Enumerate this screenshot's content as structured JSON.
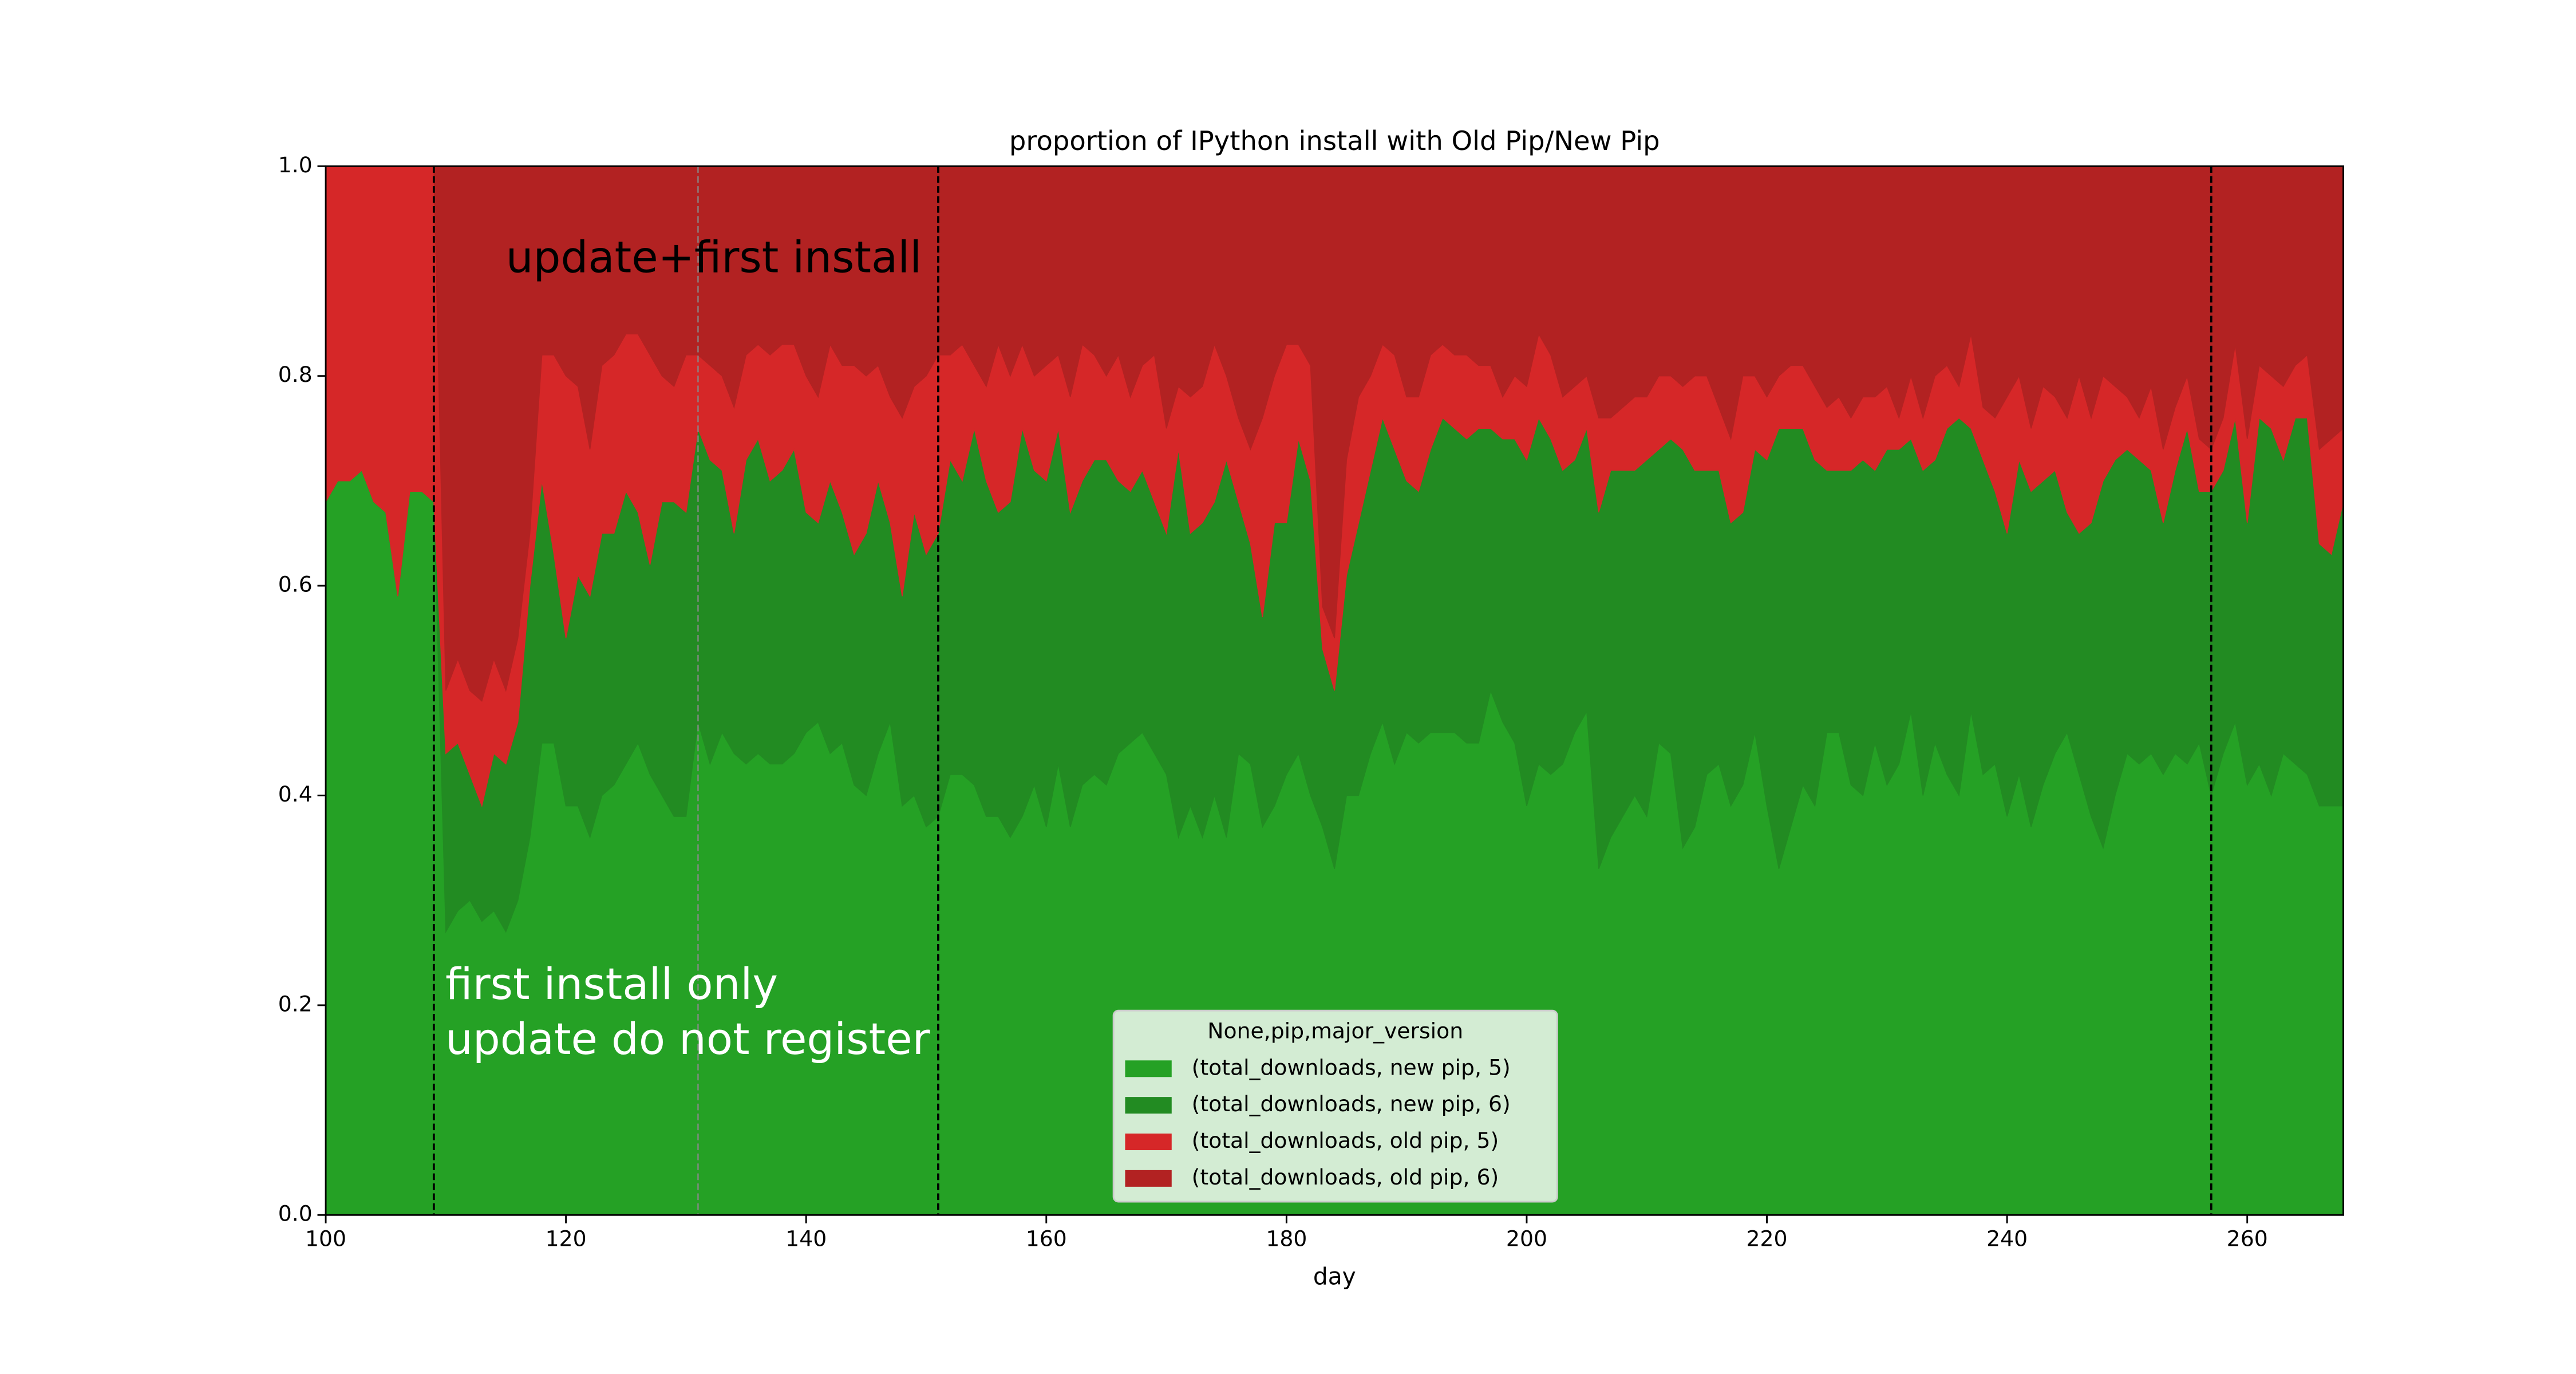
{
  "chart_data": {
    "type": "stacked_area",
    "title": "proportion of IPython install with Old Pip/New Pip",
    "x_label": "day",
    "xlim": [
      100,
      268
    ],
    "xticks": [
      100,
      120,
      140,
      160,
      180,
      200,
      220,
      240,
      260
    ],
    "ylim": [
      0,
      1
    ],
    "yticks": [
      {
        "value": 0,
        "label": "0.0"
      },
      {
        "value": 0.2,
        "label": "0.2"
      },
      {
        "value": 0.4,
        "label": "0.4"
      },
      {
        "value": 0.6,
        "label": "0.6"
      },
      {
        "value": 0.8,
        "label": "0.8"
      },
      {
        "value": 1,
        "label": "1.0"
      }
    ],
    "legend": {
      "title": "None,pip,major_version",
      "loc": "lower center"
    },
    "annotations": [
      "update+first install",
      "first install only",
      "update do not register"
    ],
    "vlines": [
      {
        "x": 109,
        "color": "#000000"
      },
      {
        "x": 131,
        "color": "#888888"
      },
      {
        "x": 151,
        "color": "#000000"
      },
      {
        "x": 257,
        "color": "#000000"
      }
    ],
    "x": [
      100,
      101,
      102,
      103,
      104,
      105,
      106,
      107,
      108,
      109,
      110,
      111,
      112,
      113,
      114,
      115,
      116,
      117,
      118,
      119,
      120,
      121,
      122,
      123,
      124,
      125,
      126,
      127,
      128,
      129,
      130,
      131,
      132,
      133,
      134,
      135,
      136,
      137,
      138,
      139,
      140,
      141,
      142,
      143,
      144,
      145,
      146,
      147,
      148,
      149,
      150,
      151,
      152,
      153,
      154,
      155,
      156,
      157,
      158,
      159,
      160,
      161,
      162,
      163,
      164,
      165,
      166,
      167,
      168,
      169,
      170,
      171,
      172,
      173,
      174,
      175,
      176,
      177,
      178,
      179,
      180,
      181,
      182,
      183,
      184,
      185,
      186,
      187,
      188,
      189,
      190,
      191,
      192,
      193,
      194,
      195,
      196,
      197,
      198,
      199,
      200,
      201,
      202,
      203,
      204,
      205,
      206,
      207,
      208,
      209,
      210,
      211,
      212,
      213,
      214,
      215,
      216,
      217,
      218,
      219,
      220,
      221,
      222,
      223,
      224,
      225,
      226,
      227,
      228,
      229,
      230,
      231,
      232,
      233,
      234,
      235,
      236,
      237,
      238,
      239,
      240,
      241,
      242,
      243,
      244,
      245,
      246,
      247,
      248,
      249,
      250,
      251,
      252,
      253,
      254,
      255,
      256,
      257,
      258,
      259,
      260,
      261,
      262,
      263,
      264,
      265,
      266,
      267,
      268
    ],
    "series": [
      {
        "name": "(total_downloads, new pip, 5)",
        "color": "#25a125",
        "values": [
          0.68,
          0.7,
          0.7,
          0.71,
          0.68,
          0.67,
          0.59,
          0.69,
          0.69,
          0.68,
          0.27,
          0.29,
          0.3,
          0.28,
          0.29,
          0.27,
          0.3,
          0.36,
          0.45,
          0.45,
          0.39,
          0.39,
          0.36,
          0.4,
          0.41,
          0.43,
          0.45,
          0.42,
          0.4,
          0.38,
          0.38,
          0.47,
          0.43,
          0.46,
          0.44,
          0.43,
          0.44,
          0.43,
          0.43,
          0.44,
          0.46,
          0.47,
          0.44,
          0.45,
          0.41,
          0.4,
          0.44,
          0.47,
          0.39,
          0.4,
          0.37,
          0.38,
          0.42,
          0.42,
          0.41,
          0.38,
          0.38,
          0.36,
          0.38,
          0.41,
          0.37,
          0.43,
          0.37,
          0.41,
          0.42,
          0.41,
          0.44,
          0.45,
          0.46,
          0.44,
          0.42,
          0.36,
          0.39,
          0.36,
          0.4,
          0.36,
          0.44,
          0.43,
          0.37,
          0.39,
          0.42,
          0.44,
          0.4,
          0.37,
          0.33,
          0.4,
          0.4,
          0.44,
          0.47,
          0.43,
          0.46,
          0.45,
          0.46,
          0.46,
          0.46,
          0.45,
          0.45,
          0.5,
          0.47,
          0.45,
          0.39,
          0.43,
          0.42,
          0.43,
          0.46,
          0.48,
          0.33,
          0.36,
          0.38,
          0.4,
          0.38,
          0.45,
          0.44,
          0.35,
          0.37,
          0.42,
          0.43,
          0.39,
          0.41,
          0.46,
          0.39,
          0.33,
          0.37,
          0.41,
          0.39,
          0.46,
          0.46,
          0.41,
          0.4,
          0.45,
          0.41,
          0.43,
          0.48,
          0.4,
          0.45,
          0.42,
          0.4,
          0.48,
          0.42,
          0.43,
          0.38,
          0.42,
          0.37,
          0.41,
          0.44,
          0.46,
          0.42,
          0.38,
          0.35,
          0.4,
          0.44,
          0.43,
          0.44,
          0.42,
          0.44,
          0.43,
          0.45,
          0.4,
          0.44,
          0.47,
          0.41,
          0.43,
          0.4,
          0.44,
          0.43,
          0.42,
          0.39,
          0.39,
          0.39
        ]
      },
      {
        "name": "(total_downloads, new pip, 6)",
        "color": "#228b22",
        "values": [
          0,
          0,
          0,
          0,
          0,
          0,
          0,
          0,
          0,
          0,
          0.17,
          0.16,
          0.12,
          0.11,
          0.15,
          0.16,
          0.17,
          0.24,
          0.25,
          0.18,
          0.16,
          0.22,
          0.23,
          0.25,
          0.24,
          0.26,
          0.22,
          0.2,
          0.28,
          0.3,
          0.29,
          0.28,
          0.29,
          0.25,
          0.21,
          0.29,
          0.3,
          0.27,
          0.28,
          0.29,
          0.21,
          0.19,
          0.26,
          0.22,
          0.22,
          0.25,
          0.26,
          0.19,
          0.2,
          0.27,
          0.26,
          0.27,
          0.3,
          0.28,
          0.34,
          0.32,
          0.29,
          0.32,
          0.37,
          0.3,
          0.33,
          0.32,
          0.3,
          0.29,
          0.3,
          0.31,
          0.26,
          0.24,
          0.25,
          0.24,
          0.23,
          0.37,
          0.26,
          0.3,
          0.28,
          0.36,
          0.24,
          0.21,
          0.2,
          0.27,
          0.24,
          0.3,
          0.3,
          0.17,
          0.17,
          0.21,
          0.26,
          0.27,
          0.29,
          0.3,
          0.24,
          0.24,
          0.27,
          0.3,
          0.29,
          0.29,
          0.3,
          0.25,
          0.27,
          0.29,
          0.33,
          0.33,
          0.32,
          0.28,
          0.26,
          0.27,
          0.34,
          0.35,
          0.33,
          0.31,
          0.34,
          0.28,
          0.3,
          0.38,
          0.34,
          0.29,
          0.28,
          0.27,
          0.26,
          0.27,
          0.33,
          0.42,
          0.38,
          0.34,
          0.33,
          0.25,
          0.25,
          0.3,
          0.32,
          0.26,
          0.32,
          0.3,
          0.26,
          0.31,
          0.27,
          0.33,
          0.36,
          0.27,
          0.3,
          0.26,
          0.27,
          0.3,
          0.32,
          0.29,
          0.27,
          0.21,
          0.23,
          0.28,
          0.35,
          0.32,
          0.29,
          0.29,
          0.27,
          0.24,
          0.27,
          0.32,
          0.24,
          0.29,
          0.27,
          0.29,
          0.25,
          0.33,
          0.35,
          0.28,
          0.33,
          0.34,
          0.25,
          0.24,
          0.29
        ]
      },
      {
        "name": "(total_downloads, old pip, 5)",
        "color": "#d62728",
        "values": [
          0.32,
          0.3,
          0.3,
          0.29,
          0.32,
          0.33,
          0.41,
          0.31,
          0.31,
          0.32,
          0.06,
          0.08,
          0.08,
          0.1,
          0.09,
          0.07,
          0.08,
          0.05,
          0.12,
          0.19,
          0.25,
          0.18,
          0.14,
          0.16,
          0.17,
          0.15,
          0.17,
          0.2,
          0.12,
          0.11,
          0.15,
          0.07,
          0.09,
          0.09,
          0.12,
          0.1,
          0.09,
          0.12,
          0.12,
          0.1,
          0.13,
          0.12,
          0.13,
          0.14,
          0.18,
          0.15,
          0.11,
          0.12,
          0.17,
          0.12,
          0.17,
          0.17,
          0.1,
          0.13,
          0.06,
          0.09,
          0.16,
          0.12,
          0.08,
          0.09,
          0.11,
          0.07,
          0.11,
          0.13,
          0.1,
          0.08,
          0.12,
          0.09,
          0.1,
          0.14,
          0.1,
          0.06,
          0.13,
          0.13,
          0.15,
          0.08,
          0.08,
          0.09,
          0.19,
          0.14,
          0.17,
          0.09,
          0.11,
          0.04,
          0.05,
          0.11,
          0.12,
          0.09,
          0.07,
          0.09,
          0.08,
          0.09,
          0.09,
          0.07,
          0.07,
          0.08,
          0.06,
          0.06,
          0.04,
          0.06,
          0.07,
          0.08,
          0.08,
          0.07,
          0.07,
          0.05,
          0.09,
          0.05,
          0.06,
          0.07,
          0.06,
          0.07,
          0.06,
          0.06,
          0.09,
          0.09,
          0.06,
          0.08,
          0.13,
          0.07,
          0.06,
          0.05,
          0.06,
          0.06,
          0.07,
          0.06,
          0.07,
          0.05,
          0.06,
          0.07,
          0.06,
          0.03,
          0.06,
          0.05,
          0.08,
          0.06,
          0.03,
          0.09,
          0.05,
          0.07,
          0.13,
          0.08,
          0.06,
          0.09,
          0.07,
          0.09,
          0.15,
          0.1,
          0.1,
          0.07,
          0.05,
          0.04,
          0.08,
          0.07,
          0.06,
          0.05,
          0.05,
          0.04,
          0.05,
          0.07,
          0.08,
          0.05,
          0.05,
          0.07,
          0.05,
          0.06,
          0.09,
          0.11,
          0.07
        ]
      },
      {
        "name": "(total_downloads, old pip, 6)",
        "color": "#b22222",
        "values": [
          0,
          0,
          0,
          0,
          0,
          0,
          0,
          0,
          0,
          0,
          0.5,
          0.47,
          0.5,
          0.51,
          0.47,
          0.5,
          0.45,
          0.35,
          0.18,
          0.18,
          0.2,
          0.21,
          0.27,
          0.19,
          0.18,
          0.16,
          0.16,
          0.18,
          0.2,
          0.21,
          0.18,
          0.18,
          0.19,
          0.2,
          0.23,
          0.18,
          0.17,
          0.18,
          0.17,
          0.17,
          0.2,
          0.22,
          0.17,
          0.19,
          0.19,
          0.2,
          0.19,
          0.22,
          0.24,
          0.21,
          0.2,
          0.18,
          0.18,
          0.17,
          0.19,
          0.21,
          0.17,
          0.2,
          0.17,
          0.2,
          0.19,
          0.18,
          0.22,
          0.17,
          0.18,
          0.2,
          0.18,
          0.22,
          0.19,
          0.18,
          0.25,
          0.21,
          0.22,
          0.21,
          0.17,
          0.2,
          0.24,
          0.27,
          0.24,
          0.2,
          0.17,
          0.17,
          0.19,
          0.42,
          0.45,
          0.28,
          0.22,
          0.2,
          0.17,
          0.18,
          0.22,
          0.22,
          0.18,
          0.17,
          0.18,
          0.18,
          0.19,
          0.19,
          0.22,
          0.2,
          0.21,
          0.16,
          0.18,
          0.22,
          0.21,
          0.2,
          0.24,
          0.24,
          0.23,
          0.22,
          0.22,
          0.2,
          0.2,
          0.21,
          0.2,
          0.2,
          0.23,
          0.26,
          0.2,
          0.2,
          0.22,
          0.2,
          0.19,
          0.19,
          0.21,
          0.23,
          0.22,
          0.24,
          0.22,
          0.22,
          0.21,
          0.24,
          0.2,
          0.24,
          0.2,
          0.19,
          0.21,
          0.16,
          0.23,
          0.24,
          0.22,
          0.2,
          0.25,
          0.21,
          0.22,
          0.24,
          0.2,
          0.24,
          0.2,
          0.21,
          0.22,
          0.24,
          0.21,
          0.27,
          0.23,
          0.2,
          0.26,
          0.27,
          0.24,
          0.17,
          0.26,
          0.19,
          0.2,
          0.21,
          0.19,
          0.18,
          0.27,
          0.26,
          0.25
        ]
      }
    ]
  }
}
